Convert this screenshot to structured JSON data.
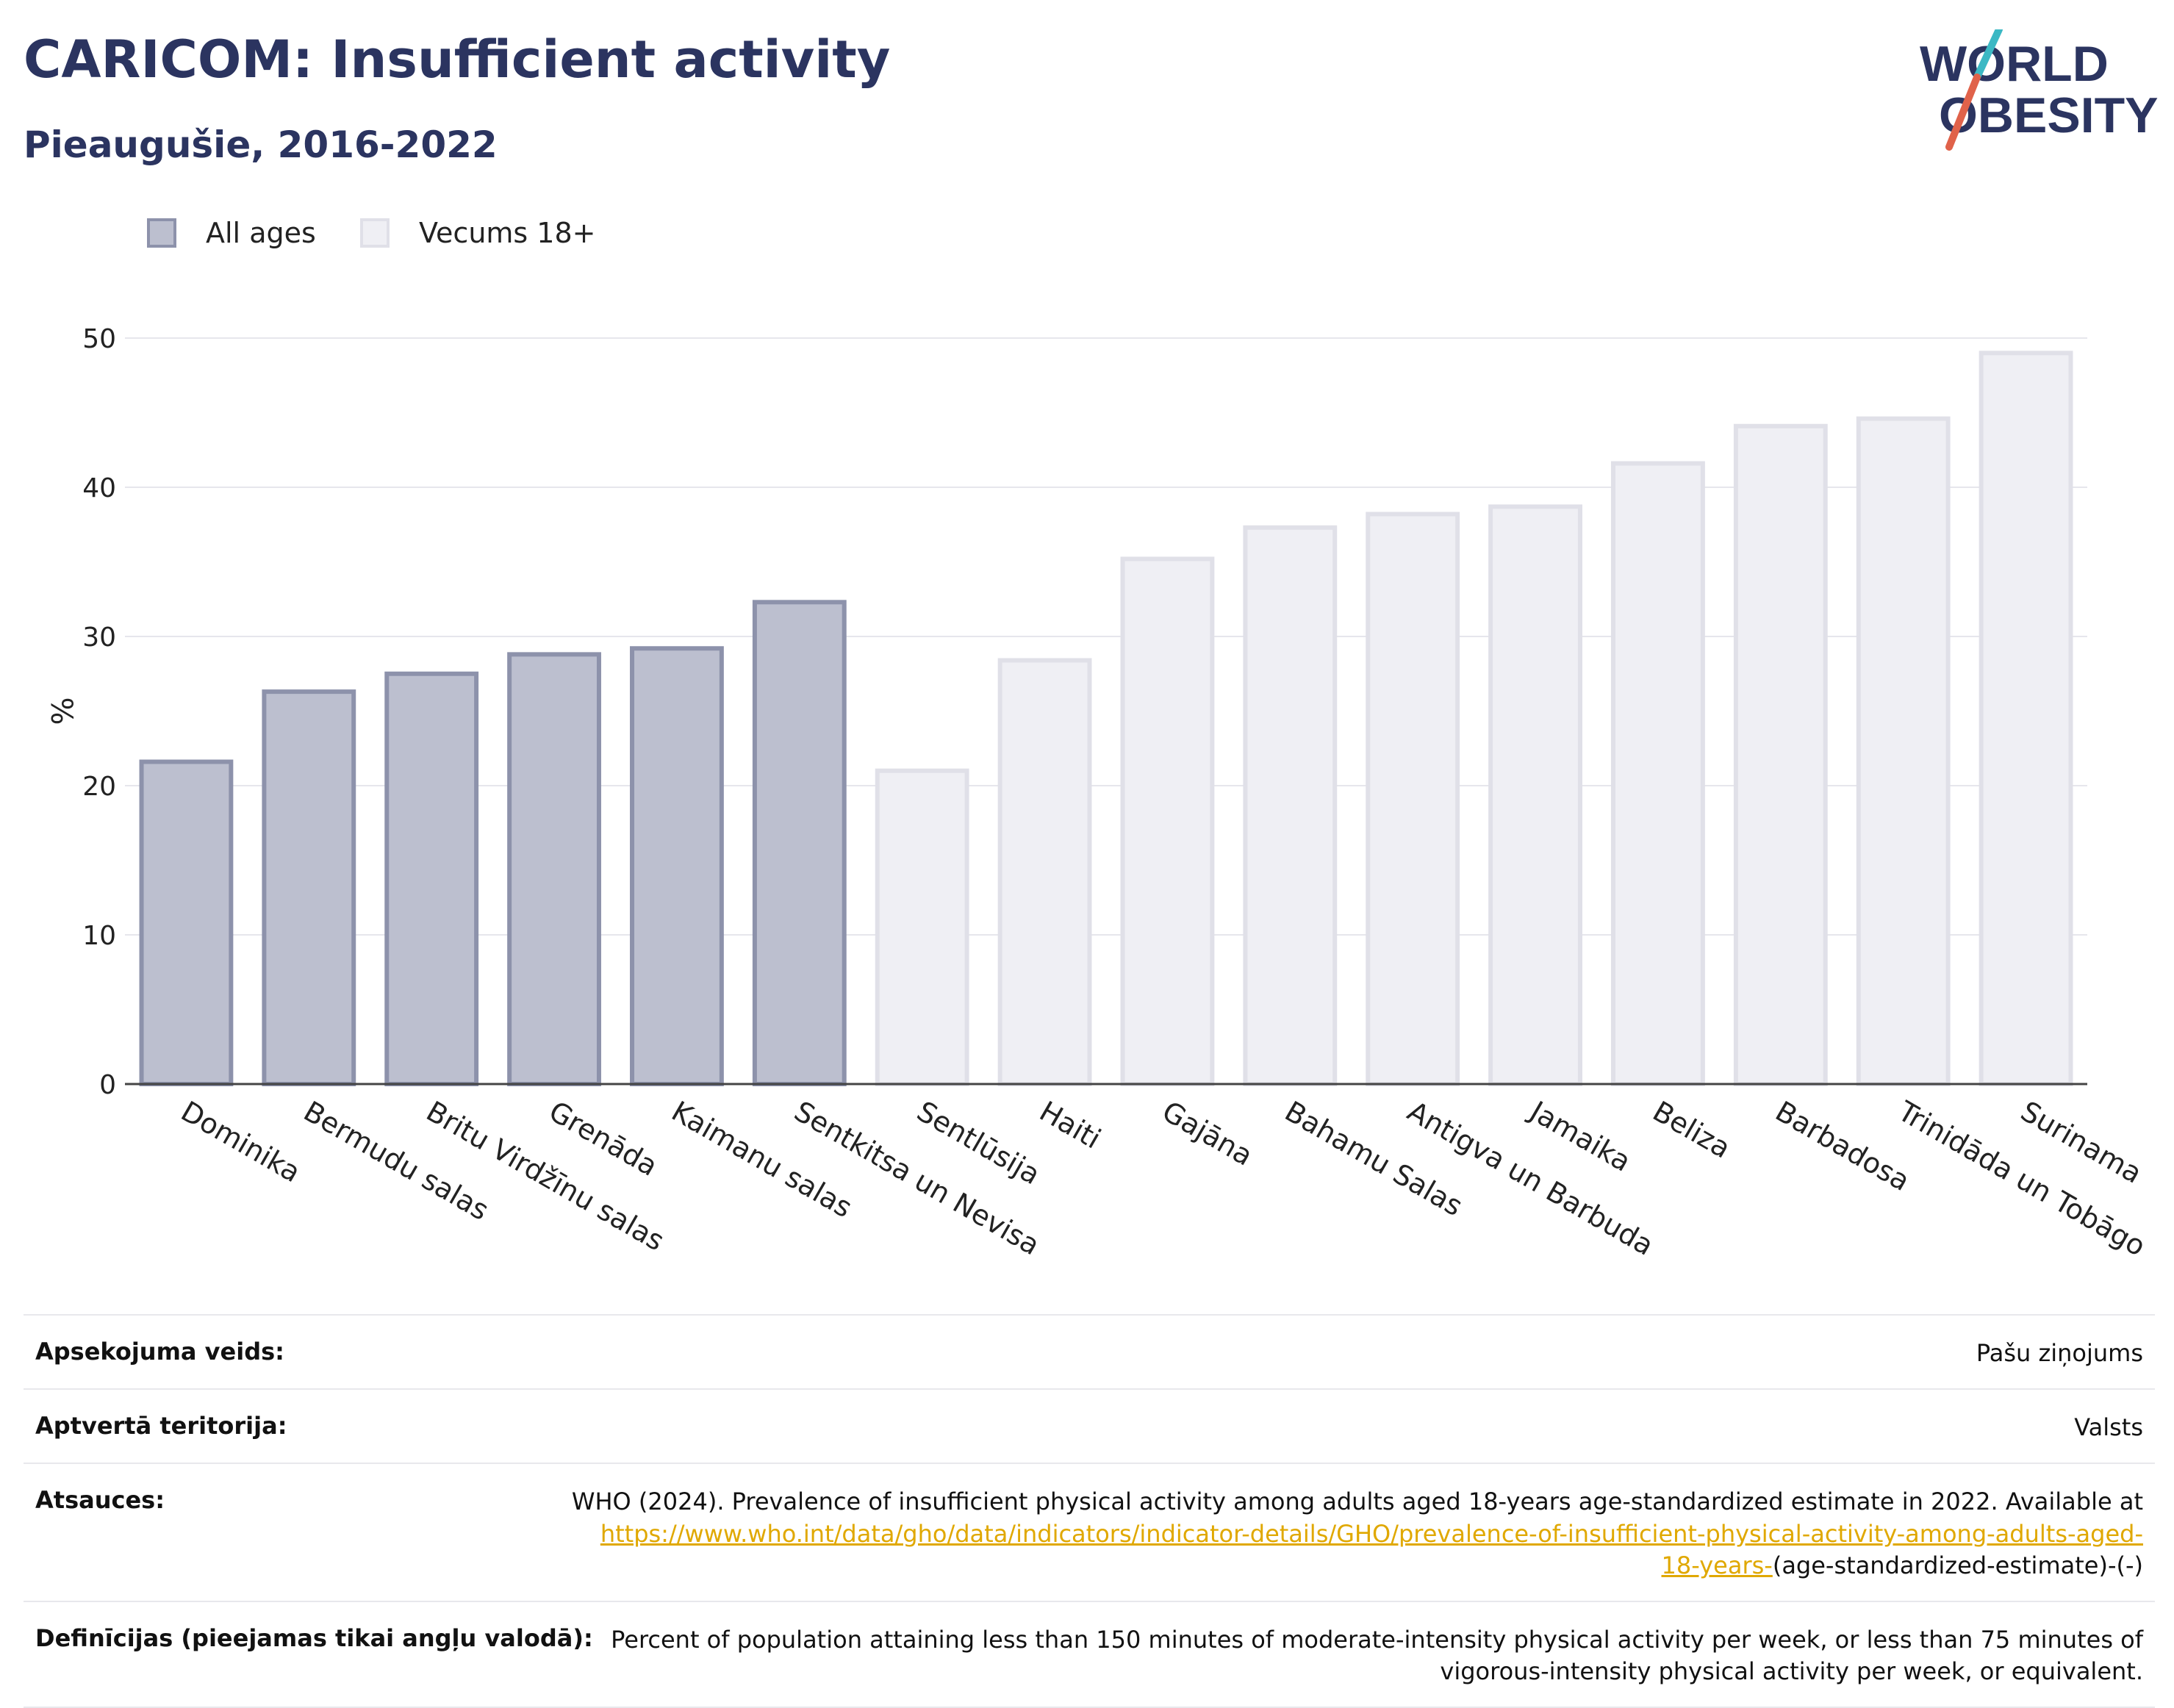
{
  "header": {
    "title": "CARICOM: Insufficient activity",
    "subtitle": "Pieaugušie, 2016-2022"
  },
  "logo": {
    "line1": "WORLD",
    "line2": "OBESITY",
    "colors": {
      "text": "#2b3460",
      "slash_top": "#3bb8c4",
      "slash_bottom": "#e0624a"
    }
  },
  "legend": [
    {
      "label": "All ages",
      "fill": "#bcbfcf",
      "stroke": "#8d92ab"
    },
    {
      "label": "Vecums 18+",
      "fill": "#efeff4",
      "stroke": "#e0e0e8"
    }
  ],
  "chart_data": {
    "type": "bar",
    "ylabel": "%",
    "ylim": [
      0,
      50
    ],
    "yticks": [
      0,
      10,
      20,
      30,
      40,
      50
    ],
    "grid": true,
    "legend_position": "top-left",
    "categories": [
      "Dominika",
      "Bermudu salas",
      "Britu Virdžīnu salas",
      "Grenāda",
      "Kaimanu salas",
      "Sentkitsa un Nevisa",
      "Sentlūsija",
      "Haiti",
      "Gajāna",
      "Bahamu Salas",
      "Antigva un Barbuda",
      "Jamaika",
      "Beliza",
      "Barbadosa",
      "Trinidāda un Tobāgo",
      "Surinama"
    ],
    "values": [
      21.6,
      26.3,
      27.5,
      28.8,
      29.2,
      32.3,
      21.0,
      28.4,
      35.2,
      37.3,
      38.2,
      38.7,
      41.6,
      44.1,
      44.6,
      49.0
    ],
    "group": [
      "All ages",
      "All ages",
      "All ages",
      "All ages",
      "All ages",
      "All ages",
      "Vecums 18+",
      "Vecums 18+",
      "Vecums 18+",
      "Vecums 18+",
      "Vecums 18+",
      "Vecums 18+",
      "Vecums 18+",
      "Vecums 18+",
      "Vecums 18+",
      "Vecums 18+"
    ]
  },
  "meta": [
    {
      "label": "Apsekojuma veids:",
      "value": "Pašu ziņojums"
    },
    {
      "label": "Aptvertā teritorija:",
      "value": "Valsts"
    },
    {
      "label": "Atsauces:",
      "value": "WHO (2024). Prevalence of insufficient physical activity among adults aged 18-years age-standardized estimate in 2022. Available at",
      "link": "https://www.who.int/data/gho/data/indicators/indicator-details/GHO/prevalence-of-insufficient-physical-activity-among-adults-aged-18-years-",
      "suffix": "(age-standardized-estimate)-(-)"
    },
    {
      "label": "Definīcijas (pieejamas tikai angļu valodā):",
      "value": "Percent of population attaining less than 150 minutes of moderate-intensity physical activity per week, or less than 75 minutes of vigorous-intensity physical activity per week, or equivalent."
    }
  ]
}
